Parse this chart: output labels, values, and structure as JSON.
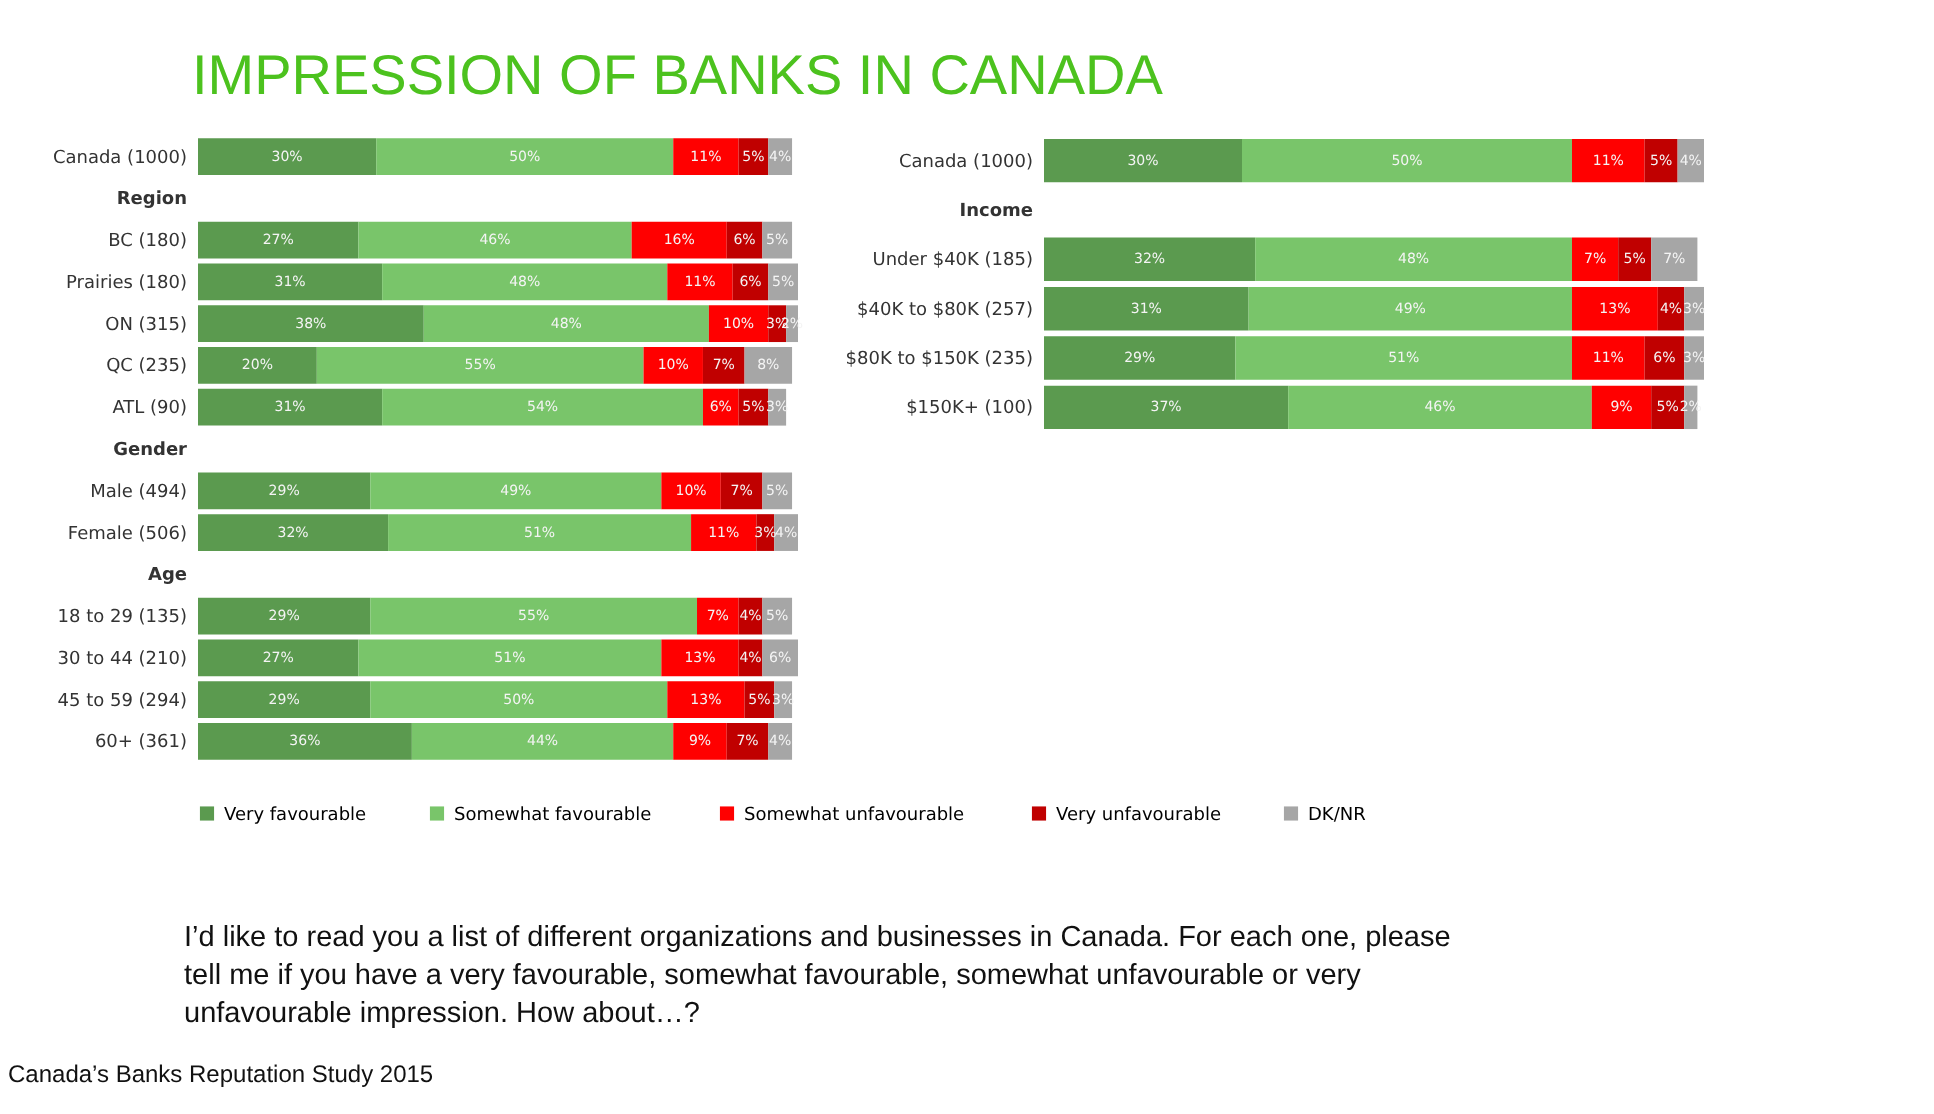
{
  "chart_data": [
    {
      "type": "bar",
      "orientation": "horizontal",
      "stacked": true,
      "title": "IMPRESSION OF BANKS IN CANADA",
      "categories": [
        "Canada (1000)",
        "Region",
        "BC (180)",
        "Prairies  (180)",
        "ON (315)",
        "QC (235)",
        "ATL (90)",
        "Gender",
        "Male (494)",
        "Female (506)",
        "Age",
        "18 to 29 (135)",
        "30 to 44 (210)",
        "45 to 59 (294)",
        "60+ (361)"
      ],
      "series": [
        {
          "name": "Very favourable",
          "color": "#5b9a4f",
          "values": [
            30,
            null,
            27,
            31,
            38,
            20,
            31,
            null,
            29,
            32,
            null,
            29,
            27,
            29,
            36
          ],
          "value_labels": [
            "30%",
            null,
            "27%",
            "31%",
            "38%",
            "20%",
            "31%",
            null,
            "29%",
            "32%",
            null,
            "29%",
            "27%",
            "29%",
            "36%"
          ]
        },
        {
          "name": "Somewhat  favourable",
          "color": "#79c56a",
          "values": [
            50,
            null,
            46,
            48,
            48,
            55,
            54,
            null,
            49,
            51,
            null,
            55,
            51,
            50,
            44
          ],
          "value_labels": [
            "50%",
            null,
            "46%",
            "48%",
            "48%",
            "55%",
            "54%",
            null,
            "49%",
            "51%",
            null,
            "55%",
            "51%",
            "50%",
            "44%"
          ]
        },
        {
          "name": "Somewhat  unfavourable",
          "color": "#ff0000",
          "values": [
            11,
            null,
            16,
            11,
            10,
            10,
            6,
            null,
            10,
            11,
            null,
            7,
            13,
            13,
            9
          ],
          "value_labels": [
            "11%",
            null,
            "16%",
            "11%",
            "10%",
            "10%",
            "6%",
            null,
            "10%",
            "11%",
            null,
            "7%",
            "13%",
            "13%",
            "9%"
          ]
        },
        {
          "name": "Very unfavourable",
          "color": "#c00000",
          "values": [
            5,
            null,
            6,
            6,
            3,
            7,
            5,
            null,
            7,
            3,
            null,
            4,
            4,
            5,
            7
          ],
          "value_labels": [
            "5%",
            null,
            "6%",
            "6%",
            "3%",
            "7%",
            "5%",
            null,
            "7%",
            "3%",
            null,
            "4%",
            "4%",
            "5%",
            "7%"
          ]
        },
        {
          "name": "DK/NR",
          "color": "#a6a6a6",
          "values": [
            4,
            null,
            5,
            5,
            2,
            8,
            3,
            null,
            5,
            4,
            null,
            5,
            6,
            3,
            4
          ],
          "value_labels": [
            "4%",
            null,
            "5%",
            "5%",
            "2%",
            "8%",
            "3%",
            null,
            "5%",
            "4%",
            null,
            "5%",
            "6%",
            "3%",
            "4%"
          ]
        }
      ],
      "tick_labels": "y",
      "legend": "bottom",
      "annotations": [
        "I’d like to read you a list of different organizations and businesses in Canada. For each one, please tell me if you have a very favourable, somewhat favourable, somewhat unfavourable or very unfavourable impression. How about…?",
        "Canada’s Banks Reputation Study 2015"
      ]
    },
    {
      "type": "bar",
      "orientation": "horizontal",
      "stacked": true,
      "categories": [
        "Canada (1000)",
        "Income",
        "Under $40K  (185)",
        "$40K to $80K (257)",
        "$80K to $150K (235)",
        "$150K+  (100)"
      ],
      "series": [
        {
          "color": "#5b9a4f",
          "values": [
            30,
            null,
            32,
            31,
            29,
            37
          ],
          "value_labels": [
            "30%",
            null,
            "32%",
            "31%",
            "29%",
            "37%"
          ]
        },
        {
          "color": "#79c56a",
          "values": [
            50,
            null,
            48,
            49,
            51,
            46
          ],
          "value_labels": [
            "50%",
            null,
            "48%",
            "49%",
            "51%",
            "46%"
          ]
        },
        {
          "color": "#ff0000",
          "values": [
            11,
            null,
            7,
            13,
            11,
            9
          ],
          "value_labels": [
            "11%",
            null,
            "7%",
            "13%",
            "11%",
            "9%"
          ]
        },
        {
          "color": "#c00000",
          "values": [
            5,
            null,
            5,
            4,
            6,
            5
          ],
          "value_labels": [
            "5%",
            null,
            "5%",
            "4%",
            "6%",
            "5%"
          ]
        },
        {
          "color": "#a6a6a6",
          "values": [
            4,
            null,
            7,
            3,
            3,
            2
          ],
          "value_labels": [
            "4%",
            null,
            "7%",
            "3%",
            "3%",
            "2%"
          ]
        }
      ],
      "tick_labels": "y"
    }
  ]
}
